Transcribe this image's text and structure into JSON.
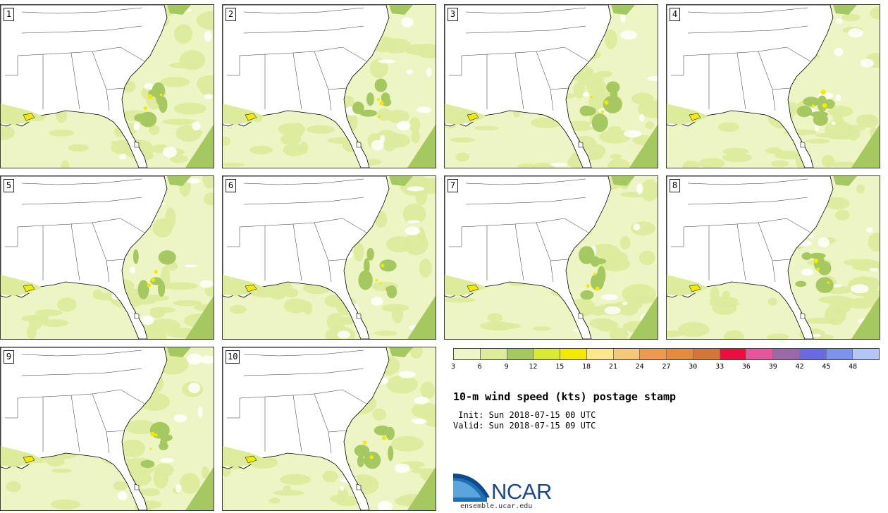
{
  "panels": [
    {
      "label": "1"
    },
    {
      "label": "2"
    },
    {
      "label": "3"
    },
    {
      "label": "4"
    },
    {
      "label": "5"
    },
    {
      "label": "6"
    },
    {
      "label": "7"
    },
    {
      "label": "8"
    },
    {
      "label": "9"
    },
    {
      "label": "10"
    }
  ],
  "colorbar": {
    "ticks": [
      "3",
      "6",
      "9",
      "12",
      "15",
      "18",
      "21",
      "24",
      "27",
      "30",
      "33",
      "36",
      "39",
      "42",
      "45",
      "48"
    ],
    "colors": [
      "#eef5c6",
      "#dceb9c",
      "#a6c860",
      "#d8ea32",
      "#f4ea00",
      "#fbe88c",
      "#f5c87a",
      "#ed9a4c",
      "#e88a3c",
      "#d77438",
      "#ea0f3c",
      "#e8559a",
      "#9a6aa6",
      "#6a6ae6",
      "#7c92ee",
      "#b4c6f4"
    ]
  },
  "title": "10-m wind speed (kts) postage stamp",
  "init": " Init: Sun 2018-07-15 00 UTC",
  "valid": "Valid: Sun 2018-07-15 09 UTC",
  "logo": {
    "text": "NCAR",
    "url": "ensemble.ucar.edu"
  },
  "colors": {
    "land": "#ffffff",
    "ocean_light": "#eef5c4",
    "wind_mid": "#dceb9c",
    "wind_high": "#a6c860",
    "wind_peak": "#f4ea00"
  }
}
